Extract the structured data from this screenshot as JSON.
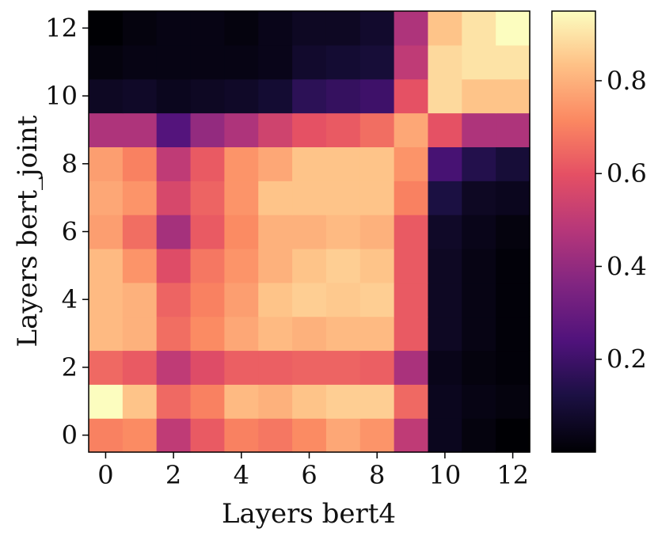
{
  "chart_data": {
    "type": "heatmap",
    "title": "",
    "xlabel": "Layers bert4",
    "ylabel": "Layers bert_joint",
    "x": [
      0,
      1,
      2,
      3,
      4,
      5,
      6,
      7,
      8,
      9,
      10,
      11,
      12
    ],
    "y": [
      0,
      1,
      2,
      3,
      4,
      5,
      6,
      7,
      8,
      9,
      10,
      11,
      12
    ],
    "x_ticks": [
      0,
      2,
      4,
      6,
      8,
      10,
      12
    ],
    "y_ticks": [
      0,
      2,
      4,
      6,
      8,
      10,
      12
    ],
    "colormap": "magma",
    "colorbar": {
      "ticks": [
        0.2,
        0.4,
        0.6,
        0.8
      ],
      "range": [
        0.0,
        0.95
      ],
      "placement": "right"
    },
    "values": [
      [
        0.7,
        0.72,
        0.5,
        0.62,
        0.7,
        0.68,
        0.72,
        0.78,
        0.74,
        0.5,
        0.05,
        0.02,
        0.0
      ],
      [
        0.95,
        0.84,
        0.65,
        0.7,
        0.82,
        0.8,
        0.84,
        0.86,
        0.86,
        0.65,
        0.05,
        0.03,
        0.02
      ],
      [
        0.65,
        0.62,
        0.5,
        0.58,
        0.63,
        0.63,
        0.64,
        0.64,
        0.63,
        0.45,
        0.04,
        0.02,
        0.01
      ],
      [
        0.82,
        0.8,
        0.66,
        0.72,
        0.78,
        0.82,
        0.8,
        0.82,
        0.82,
        0.62,
        0.06,
        0.03,
        0.01
      ],
      [
        0.82,
        0.8,
        0.64,
        0.7,
        0.76,
        0.84,
        0.86,
        0.85,
        0.86,
        0.62,
        0.06,
        0.03,
        0.01
      ],
      [
        0.82,
        0.74,
        0.58,
        0.68,
        0.74,
        0.8,
        0.84,
        0.86,
        0.84,
        0.62,
        0.06,
        0.03,
        0.01
      ],
      [
        0.76,
        0.66,
        0.44,
        0.62,
        0.72,
        0.8,
        0.8,
        0.82,
        0.8,
        0.62,
        0.07,
        0.04,
        0.02
      ],
      [
        0.78,
        0.74,
        0.56,
        0.64,
        0.74,
        0.84,
        0.84,
        0.84,
        0.84,
        0.7,
        0.12,
        0.06,
        0.05
      ],
      [
        0.76,
        0.7,
        0.5,
        0.62,
        0.74,
        0.78,
        0.84,
        0.84,
        0.84,
        0.74,
        0.22,
        0.14,
        0.1
      ],
      [
        0.46,
        0.46,
        0.25,
        0.4,
        0.46,
        0.54,
        0.6,
        0.62,
        0.66,
        0.78,
        0.6,
        0.46,
        0.46
      ],
      [
        0.06,
        0.07,
        0.05,
        0.06,
        0.07,
        0.09,
        0.16,
        0.18,
        0.2,
        0.6,
        0.88,
        0.84,
        0.84
      ],
      [
        0.02,
        0.03,
        0.03,
        0.03,
        0.03,
        0.04,
        0.08,
        0.09,
        0.1,
        0.5,
        0.88,
        0.9,
        0.9
      ],
      [
        0.0,
        0.02,
        0.03,
        0.03,
        0.02,
        0.04,
        0.06,
        0.06,
        0.08,
        0.46,
        0.84,
        0.9,
        0.95
      ]
    ]
  }
}
